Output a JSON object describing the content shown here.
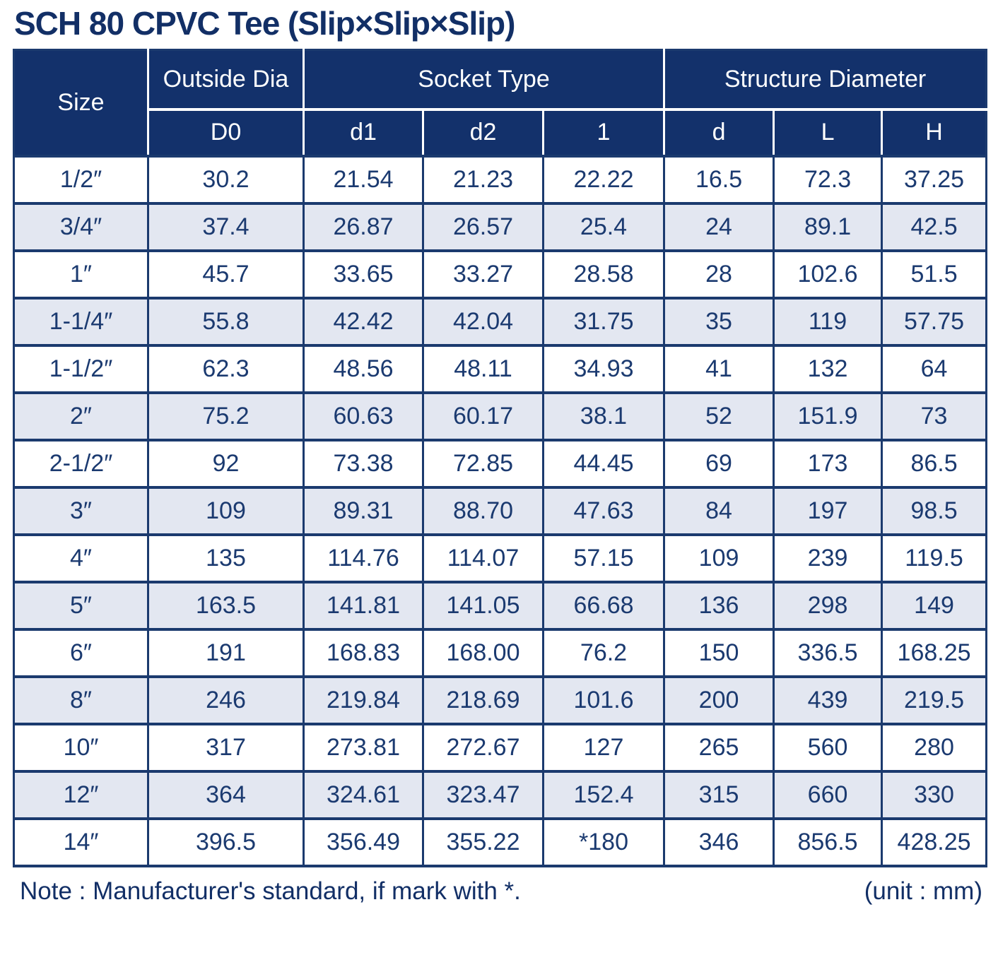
{
  "title": "SCH 80 CPVC Tee (Slip×Slip×Slip)",
  "colors": {
    "header_bg": "#13316B",
    "border": "#1B3A6E",
    "row_alt": "#E3E7F1",
    "text": "#1B3A70",
    "title": "#122F66"
  },
  "table": {
    "header": {
      "size": "Size",
      "outside_dia": "Outside Dia",
      "socket_type": "Socket Type",
      "structure_diameter": "Structure Diameter",
      "sub": [
        "D0",
        "d1",
        "d2",
        "1",
        "d",
        "L",
        "H"
      ]
    },
    "rows": [
      [
        "1/2″",
        "30.2",
        "21.54",
        "21.23",
        "22.22",
        "16.5",
        "72.3",
        "37.25"
      ],
      [
        "3/4″",
        "37.4",
        "26.87",
        "26.57",
        "25.4",
        "24",
        "89.1",
        "42.5"
      ],
      [
        "1″",
        "45.7",
        "33.65",
        "33.27",
        "28.58",
        "28",
        "102.6",
        "51.5"
      ],
      [
        "1-1/4″",
        "55.8",
        "42.42",
        "42.04",
        "31.75",
        "35",
        "119",
        "57.75"
      ],
      [
        "1-1/2″",
        "62.3",
        "48.56",
        "48.11",
        "34.93",
        "41",
        "132",
        "64"
      ],
      [
        "2″",
        "75.2",
        "60.63",
        "60.17",
        "38.1",
        "52",
        "151.9",
        "73"
      ],
      [
        "2-1/2″",
        "92",
        "73.38",
        "72.85",
        "44.45",
        "69",
        "173",
        "86.5"
      ],
      [
        "3″",
        "109",
        "89.31",
        "88.70",
        "47.63",
        "84",
        "197",
        "98.5"
      ],
      [
        "4″",
        "135",
        "114.76",
        "114.07",
        "57.15",
        "109",
        "239",
        "119.5"
      ],
      [
        "5″",
        "163.5",
        "141.81",
        "141.05",
        "66.68",
        "136",
        "298",
        "149"
      ],
      [
        "6″",
        "191",
        "168.83",
        "168.00",
        "76.2",
        "150",
        "336.5",
        "168.25"
      ],
      [
        "8″",
        "246",
        "219.84",
        "218.69",
        "101.6",
        "200",
        "439",
        "219.5"
      ],
      [
        "10″",
        "317",
        "273.81",
        "272.67",
        "127",
        "265",
        "560",
        "280"
      ],
      [
        "12″",
        "364",
        "324.61",
        "323.47",
        "152.4",
        "315",
        "660",
        "330"
      ],
      [
        "14″",
        "396.5",
        "356.49",
        "355.22",
        "*180",
        "346",
        "856.5",
        "428.25"
      ]
    ]
  },
  "footer": {
    "note": "Note : Manufacturer's standard, if mark with *.",
    "unit": "(unit : mm)"
  }
}
